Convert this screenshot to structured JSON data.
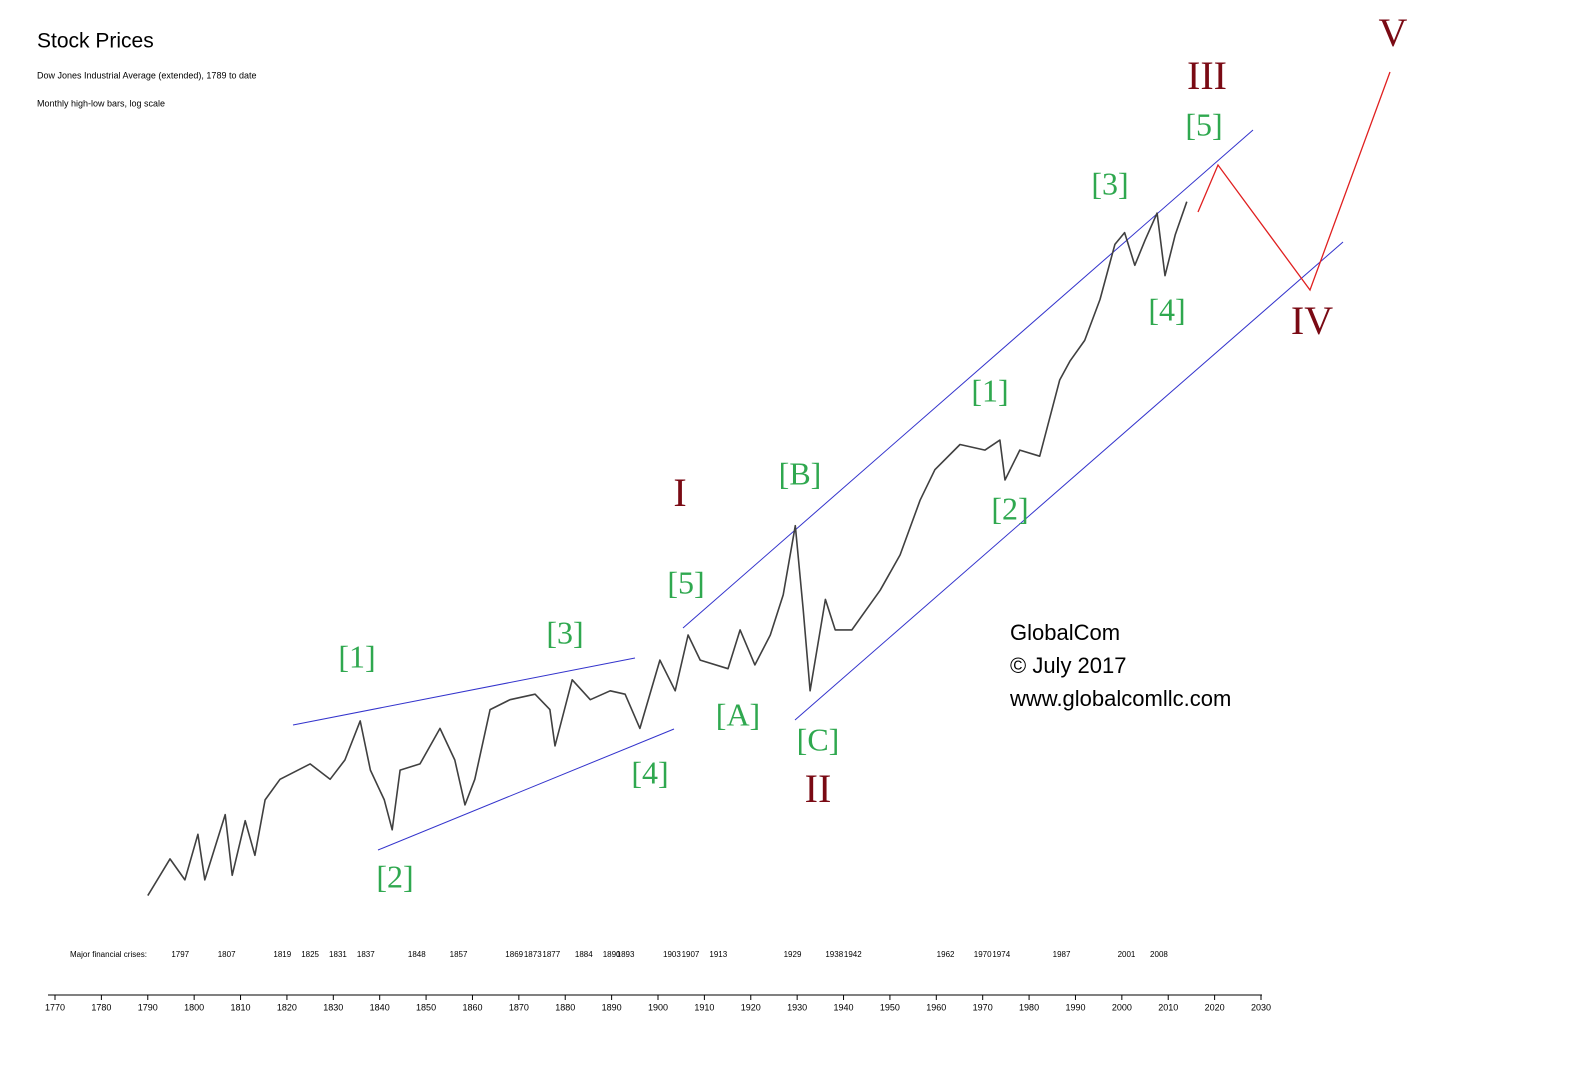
{
  "chart_data": {
    "type": "line",
    "title": "Stock Prices",
    "subtitle": "Dow Jones Industrial Average (extended), 1789 to date",
    "note": "Monthly high-low bars, log scale",
    "log_scale": true,
    "xlim": [
      1770,
      2030
    ],
    "xticks": [
      1770,
      1780,
      1790,
      1800,
      1810,
      1820,
      1830,
      1840,
      1850,
      1860,
      1870,
      1880,
      1890,
      1900,
      1910,
      1920,
      1930,
      1940,
      1950,
      1960,
      1970,
      1980,
      1990,
      2000,
      2010,
      2020,
      2030
    ],
    "ylim": [
      2,
      200000
    ],
    "x": [
      1790,
      1794.8,
      1798,
      1800.8,
      1802.3,
      1806.7,
      1808.2,
      1811,
      1813.1,
      1815.3,
      1818.5,
      1825,
      1829.3,
      1832.5,
      1835.8,
      1838,
      1841,
      1842.7,
      1844.4,
      1848.7,
      1853,
      1856.2,
      1858.4,
      1860.5,
      1863.8,
      1868.1,
      1873.5,
      1876.7,
      1877.8,
      1881.5,
      1885.4,
      1889.7,
      1892.9,
      1896.1,
      1900.4,
      1903.7,
      1906.5,
      1909.1,
      1915.1,
      1917.7,
      1920.9,
      1924.2,
      1927,
      1929.6,
      1931.3,
      1932.8,
      1936.1,
      1938.2,
      1941.8,
      1947.9,
      1952.2,
      1956.5,
      1959.7,
      1965.1,
      1970.5,
      1973.7,
      1974.8,
      1978,
      1982.3,
      1986.6,
      1988.8,
      1992,
      1995.3,
      1998.5,
      2000.6,
      2002.8,
      2005,
      2007.6,
      2009.3,
      2011.5,
      2014
    ],
    "values": [
      4.4,
      6.8,
      5.3,
      9.1,
      5.3,
      11.5,
      5.6,
      10.7,
      7.1,
      13.7,
      17.5,
      21,
      17.5,
      22,
      35,
      19.5,
      13.7,
      9.6,
      19.5,
      21,
      32,
      22,
      12.9,
      17.5,
      40,
      45,
      48,
      40,
      26,
      57,
      45,
      50,
      48,
      32,
      72,
      50,
      97,
      72,
      65,
      103,
      68,
      97,
      156,
      355,
      131,
      50,
      148,
      103,
      103,
      165,
      251,
      480,
      690,
      930,
      870,
      980,
      610,
      870,
      810,
      2000,
      2500,
      3200,
      5200,
      10000,
      11500,
      7800,
      10500,
      14500,
      6900,
      11200,
      16600
    ],
    "color": "#404040",
    "crises": {
      "label": "Major financial crises:",
      "years": [
        1797,
        1807,
        1819,
        1825,
        1831,
        1837,
        1848,
        1857,
        1869,
        1873,
        1877,
        1884,
        1890,
        1893,
        1903,
        1907,
        1913,
        1929,
        1938,
        1942,
        1962,
        1970,
        1974,
        1987,
        2001,
        2008
      ]
    },
    "minor_waves": {
      "color": "#2fa84f",
      "labels": [
        "[1]",
        "[2]",
        "[3]",
        "[4]",
        "[5]",
        "[A]",
        "[B]",
        "[C]",
        "[1]",
        "[2]",
        "[3]",
        "[4]",
        "[5]"
      ]
    },
    "major_waves": {
      "color": "#7a0a14",
      "labels": [
        "I",
        "II",
        "III",
        "IV",
        "V"
      ]
    },
    "credit": [
      "GlobalCom",
      "© July 2017",
      "www.globalcomllc.com"
    ]
  }
}
